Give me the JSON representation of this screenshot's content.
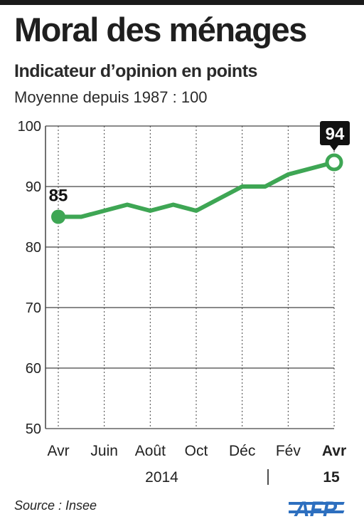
{
  "header": {
    "title": "Moral des ménages",
    "subtitle": "Indicateur d’opinion en points",
    "note": "Moyenne depuis 1987 : 100"
  },
  "footer": {
    "source": "Source : Insee",
    "logo_text": "AFP"
  },
  "colors": {
    "line": "#3ea654",
    "grid": "#444444",
    "text": "#222222",
    "callout_bg": "#111111",
    "logo": "#2d6fbf"
  },
  "chart_data": {
    "type": "line",
    "title": "Moral des ménages",
    "subtitle": "Indicateur d’opinion en points",
    "ylim": [
      50,
      100
    ],
    "yticks": [
      50,
      60,
      70,
      80,
      90,
      100
    ],
    "x": [
      "2014-04",
      "2014-05",
      "2014-06",
      "2014-07",
      "2014-08",
      "2014-09",
      "2014-10",
      "2014-11",
      "2014-12",
      "2015-01",
      "2015-02",
      "2015-03",
      "2015-04"
    ],
    "series": [
      {
        "values": [
          85,
          85,
          86,
          87,
          86,
          87,
          86,
          88,
          90,
          90,
          92,
          93,
          94
        ]
      }
    ],
    "x_tick_labels": [
      {
        "x": "2014-04",
        "label": "Avr",
        "bold": false
      },
      {
        "x": "2014-06",
        "label": "Juin",
        "bold": false
      },
      {
        "x": "2014-08",
        "label": "Août",
        "bold": false
      },
      {
        "x": "2014-10",
        "label": "Oct",
        "bold": false
      },
      {
        "x": "2014-12",
        "label": "Déc",
        "bold": false
      },
      {
        "x": "2015-02",
        "label": "Fév",
        "bold": false
      },
      {
        "x": "2015-04",
        "label": "Avr",
        "bold": true
      }
    ],
    "year_labels": [
      {
        "label": "2014",
        "bold": false
      },
      {
        "label": "15",
        "bold": true
      }
    ],
    "annotations": [
      {
        "x": "2014-04",
        "value": 85,
        "label": "85",
        "style": "plain"
      },
      {
        "x": "2015-04",
        "value": 94,
        "label": "94",
        "style": "callout"
      }
    ],
    "grid": true
  }
}
